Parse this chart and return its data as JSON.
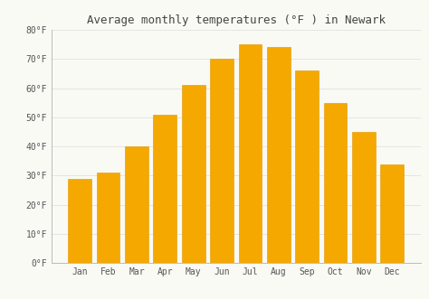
{
  "title": "Average monthly temperatures (°F ) in Newark",
  "months": [
    "Jan",
    "Feb",
    "Mar",
    "Apr",
    "May",
    "Jun",
    "Jul",
    "Aug",
    "Sep",
    "Oct",
    "Nov",
    "Dec"
  ],
  "values": [
    29,
    31,
    40,
    51,
    61,
    70,
    75,
    74,
    66,
    55,
    45,
    34
  ],
  "bar_color": "#F5A800",
  "bar_edge_color": "#E09800",
  "background_color": "#FAFAF5",
  "ylim": [
    0,
    80
  ],
  "yticks": [
    0,
    10,
    20,
    30,
    40,
    50,
    60,
    70,
    80
  ],
  "ytick_labels": [
    "0°F",
    "10°F",
    "20°F",
    "30°F",
    "40°F",
    "50°F",
    "60°F",
    "70°F",
    "80°F"
  ],
  "title_fontsize": 9,
  "tick_fontsize": 7,
  "grid_color": "#E0E0E0",
  "title_color": "#444444",
  "tick_color": "#555555",
  "bar_width": 0.82,
  "figsize": [
    4.74,
    3.31
  ],
  "dpi": 100
}
